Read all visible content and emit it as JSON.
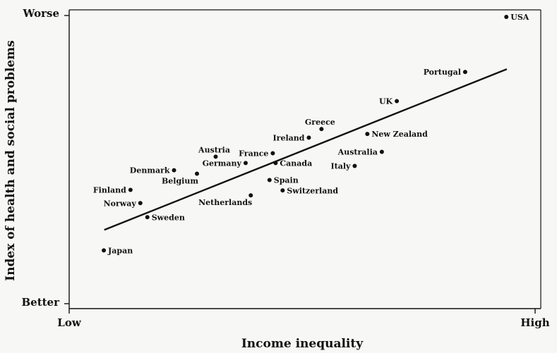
{
  "chart_data": {
    "type": "scatter",
    "title": "",
    "xlabel": "Income inequality",
    "ylabel": "Index of health and social problems",
    "x_tick_labels": [
      "Low",
      "High"
    ],
    "y_tick_labels": [
      "Worse",
      "Better"
    ],
    "xlim": [
      0,
      100
    ],
    "ylim": [
      0,
      100
    ],
    "grid": false,
    "legend": "none",
    "trendline": {
      "x": [
        7.5,
        93.5
      ],
      "y": [
        25.6,
        81.4
      ]
    },
    "points": [
      {
        "label": "USA",
        "x": 93.4,
        "y": 99.5,
        "label_side": "right"
      },
      {
        "label": "Portugal",
        "x": 84.6,
        "y": 80.4,
        "label_side": "left"
      },
      {
        "label": "UK",
        "x": 70.0,
        "y": 70.3,
        "label_side": "left"
      },
      {
        "label": "Greece",
        "x": 53.9,
        "y": 60.6,
        "label_side": "top"
      },
      {
        "label": "New Zealand",
        "x": 63.7,
        "y": 58.9,
        "label_side": "right"
      },
      {
        "label": "Ireland",
        "x": 51.2,
        "y": 57.6,
        "label_side": "left"
      },
      {
        "label": "Australia",
        "x": 66.8,
        "y": 52.7,
        "label_side": "left"
      },
      {
        "label": "France",
        "x": 43.5,
        "y": 52.2,
        "label_side": "left"
      },
      {
        "label": "Austria",
        "x": 31.3,
        "y": 51.0,
        "label_side": "top"
      },
      {
        "label": "Canada",
        "x": 44.1,
        "y": 48.8,
        "label_side": "right"
      },
      {
        "label": "Germany",
        "x": 37.7,
        "y": 48.8,
        "label_side": "left"
      },
      {
        "label": "Italy",
        "x": 61.0,
        "y": 47.8,
        "label_side": "left"
      },
      {
        "label": "Denmark",
        "x": 22.4,
        "y": 46.3,
        "label_side": "left"
      },
      {
        "label": "Belgium",
        "x": 27.3,
        "y": 45.1,
        "label_side": "bottom-left"
      },
      {
        "label": "Spain",
        "x": 42.8,
        "y": 42.9,
        "label_side": "right"
      },
      {
        "label": "Finland",
        "x": 13.1,
        "y": 39.5,
        "label_side": "left"
      },
      {
        "label": "Switzerland",
        "x": 45.6,
        "y": 39.3,
        "label_side": "right"
      },
      {
        "label": "Netherlands",
        "x": 38.8,
        "y": 37.6,
        "label_side": "bottom-left"
      },
      {
        "label": "Norway",
        "x": 15.2,
        "y": 34.9,
        "label_side": "left"
      },
      {
        "label": "Sweden",
        "x": 16.7,
        "y": 30.0,
        "label_side": "right"
      },
      {
        "label": "Japan",
        "x": 7.4,
        "y": 18.5,
        "label_side": "right"
      }
    ]
  },
  "colors": {
    "ink": "#111111",
    "paper": "#f7f7f5"
  }
}
